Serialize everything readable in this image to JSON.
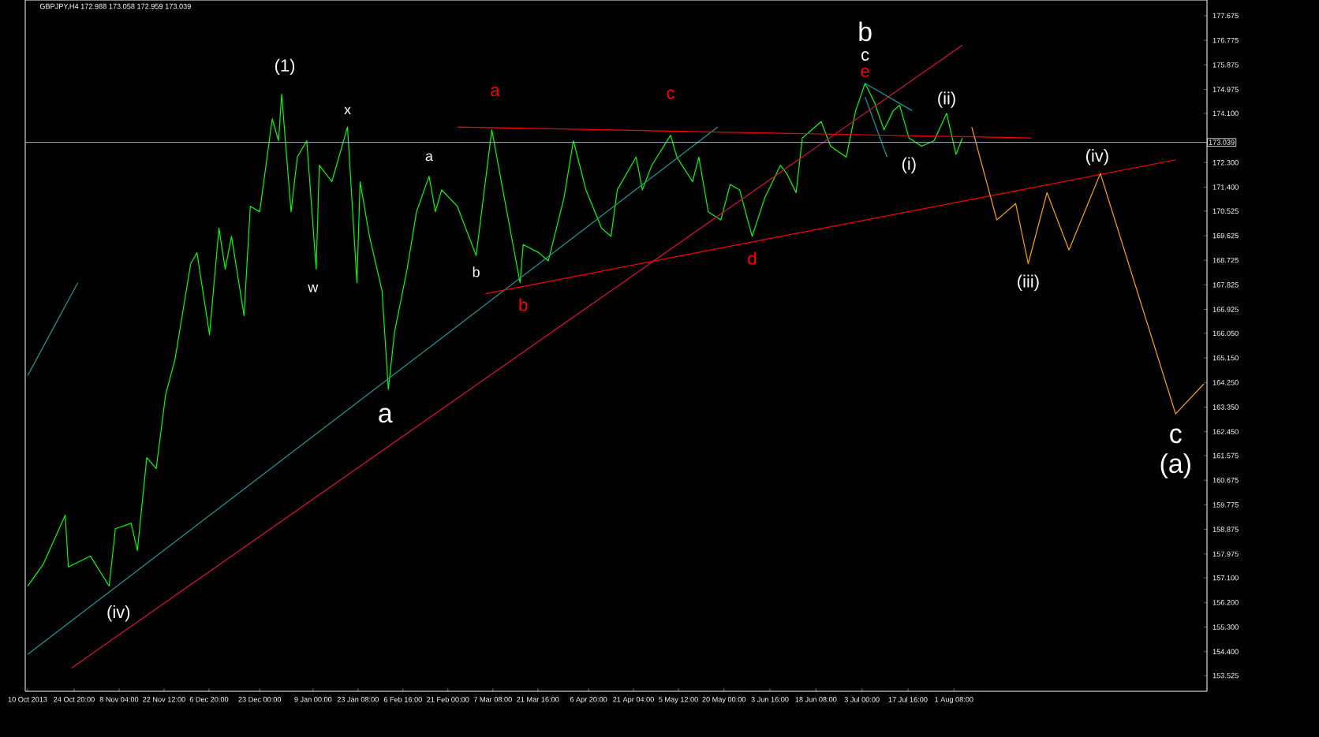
{
  "chart_data": {
    "type": "line",
    "title": "GBPJPY,H4  172.988 173.058 172.959 173.039",
    "series": [
      {
        "type": "line",
        "color": "#00ff00",
        "x": [
          "2013-10-10",
          "2013-10-15",
          "2013-10-22",
          "2013-10-23",
          "2013-10-30",
          "2013-11-05",
          "2013-11-07",
          "2013-11-12",
          "2013-11-14",
          "2013-11-17",
          "2013-11-20",
          "2013-11-23",
          "2013-11-26",
          "2013-12-01",
          "2013-12-03",
          "2013-12-07",
          "2013-12-10",
          "2013-12-12",
          "2013-12-14",
          "2013-12-18",
          "2013-12-20",
          "2013-12-23",
          "2013-12-27",
          "2013-12-29",
          "2013-12-30",
          "2014-01-02",
          "2014-01-04",
          "2014-01-07",
          "2014-01-10",
          "2014-01-11",
          "2014-01-15",
          "2014-01-20",
          "2014-01-23",
          "2014-01-24",
          "2014-01-27",
          "2014-01-31",
          "2014-02-02",
          "2014-02-04",
          "2014-02-08",
          "2014-02-11",
          "2014-02-15",
          "2014-02-17",
          "2014-02-19",
          "2014-02-24",
          "2014-03-02",
          "2014-03-07",
          "2014-03-11",
          "2014-03-16",
          "2014-03-17",
          "2014-03-22",
          "2014-03-25",
          "2014-03-30",
          "2014-04-02",
          "2014-04-06",
          "2014-04-11",
          "2014-04-14",
          "2014-04-16",
          "2014-04-22",
          "2014-04-24",
          "2014-04-27",
          "2014-05-03",
          "2014-05-05",
          "2014-05-10",
          "2014-05-12",
          "2014-05-15",
          "2014-05-19",
          "2014-05-22",
          "2014-05-25",
          "2014-05-29",
          "2014-06-02",
          "2014-06-07",
          "2014-06-09",
          "2014-06-12",
          "2014-06-14",
          "2014-06-20",
          "2014-06-23",
          "2014-06-28",
          "2014-07-01",
          "2014-07-04",
          "2014-07-07",
          "2014-07-10",
          "2014-07-13",
          "2014-07-15",
          "2014-07-18",
          "2014-07-22",
          "2014-07-26",
          "2014-07-30",
          "2014-08-02",
          "2014-08-04"
        ],
        "values": [
          156.8,
          157.6,
          159.4,
          157.5,
          157.9,
          156.8,
          158.9,
          159.1,
          158.1,
          161.5,
          161.1,
          163.8,
          165.1,
          168.6,
          169.0,
          166.0,
          169.9,
          168.4,
          169.6,
          166.7,
          170.7,
          170.5,
          173.9,
          173.1,
          174.8,
          170.5,
          172.5,
          173.1,
          168.4,
          172.2,
          171.6,
          173.6,
          167.9,
          171.6,
          169.6,
          167.6,
          164.0,
          166.1,
          168.4,
          170.5,
          171.8,
          170.5,
          171.3,
          170.7,
          168.9,
          173.5,
          171.0,
          167.9,
          169.3,
          169.0,
          168.7,
          171.0,
          173.1,
          171.3,
          169.9,
          169.6,
          171.3,
          172.5,
          171.3,
          172.2,
          173.3,
          172.5,
          171.6,
          172.5,
          170.5,
          170.2,
          171.5,
          171.3,
          169.6,
          171.0,
          172.2,
          171.9,
          171.2,
          173.2,
          173.8,
          172.9,
          172.5,
          174.2,
          175.2,
          174.5,
          173.5,
          174.2,
          174.4,
          173.2,
          172.9,
          173.1,
          174.1,
          172.6,
          173.2
        ]
      },
      {
        "type": "line",
        "color": "#1b9a9a",
        "x": [
          "2013-10-10",
          "2014-05-18"
        ],
        "values": [
          154.3,
          173.6
        ]
      },
      {
        "type": "line",
        "color": "#1b9a9a",
        "x": [
          "2013-10-10",
          "2013-10-26"
        ],
        "values": [
          164.5,
          167.9
        ]
      },
      {
        "type": "line",
        "color": "#1b9a9a",
        "x": [
          "2014-07-04",
          "2014-07-19"
        ],
        "values": [
          175.2,
          174.2
        ]
      },
      {
        "type": "line",
        "color": "#1b9a9a",
        "x": [
          "2014-07-04",
          "2014-07-11"
        ],
        "values": [
          174.7,
          172.5
        ]
      },
      {
        "type": "line",
        "color": "#e0103a",
        "x": [
          "2013-10-24",
          "2014-08-04"
        ],
        "values": [
          153.8,
          176.6
        ]
      },
      {
        "type": "line",
        "color": "#ff0000",
        "x": [
          "2014-02-24",
          "2014-08-26"
        ],
        "values": [
          173.6,
          173.2
        ]
      },
      {
        "type": "line",
        "color": "#ff0000",
        "x": [
          "2014-03-05",
          "2014-10-11"
        ],
        "values": [
          167.5,
          172.4
        ]
      },
      {
        "type": "line",
        "color": "#ffa500",
        "x": [
          "2014-08-07",
          "2014-08-15",
          "2014-08-21",
          "2014-08-25",
          "2014-08-31",
          "2014-09-07",
          "2014-09-17",
          "2014-10-11",
          "2014-10-20"
        ],
        "values": [
          173.6,
          170.2,
          170.8,
          168.6,
          171.2,
          169.1,
          171.9,
          163.1,
          164.2
        ]
      }
    ],
    "xlim": [
      "2013-10-09T06:00",
      "2014-10-21"
    ],
    "ylim": [
      152.95,
      178.25
    ],
    "xticks": [
      {
        "value": "2013-10-10T00:00",
        "label": "10 Oct 2013"
      },
      {
        "value": "2013-10-24T20:00",
        "label": "24 Oct 20:00"
      },
      {
        "value": "2013-11-08T04:00",
        "label": "8 Nov 04:00"
      },
      {
        "value": "2013-11-22T12:00",
        "label": "22 Nov 12:00"
      },
      {
        "value": "2013-12-06T20:00",
        "label": "6 Dec 20:00"
      },
      {
        "value": "2013-12-23T00:00",
        "label": "23 Dec 00:00"
      },
      {
        "value": "2014-01-09T00:00",
        "label": "9 Jan 00:00"
      },
      {
        "value": "2014-01-23T08:00",
        "label": "23 Jan 08:00"
      },
      {
        "value": "2014-02-06T16:00",
        "label": "6 Feb 16:00"
      },
      {
        "value": "2014-02-21T00:00",
        "label": "21 Feb 00:00"
      },
      {
        "value": "2014-03-07T08:00",
        "label": "7 Mar 08:00"
      },
      {
        "value": "2014-03-21T16:00",
        "label": "21 Mar 16:00"
      },
      {
        "value": "2014-04-06T20:00",
        "label": "6 Apr 20:00"
      },
      {
        "value": "2014-04-21T04:00",
        "label": "21 Apr 04:00"
      },
      {
        "value": "2014-05-05T12:00",
        "label": "5 May 12:00"
      },
      {
        "value": "2014-05-20T00:00",
        "label": "20 May 00:00"
      },
      {
        "value": "2014-06-03T16:00",
        "label": "3 Jun 16:00"
      },
      {
        "value": "2014-06-18T08:00",
        "label": "18 Jun 08:00"
      },
      {
        "value": "2014-07-03T00:00",
        "label": "3 Jul 00:00"
      },
      {
        "value": "2014-07-17T16:00",
        "label": "17 Jul 16:00"
      },
      {
        "value": "2014-08-01T08:00",
        "label": "1 Aug 08:00"
      }
    ],
    "yticks": [
      177.675,
      176.775,
      175.875,
      174.975,
      {
        "value": 174.1,
        "label": "174.100"
      },
      {
        "value": 172.3,
        "label": "172.300"
      },
      {
        "value": 171.4,
        "label": "171.400"
      },
      170.525,
      169.625,
      168.725,
      167.825,
      166.925,
      {
        "value": 166.05,
        "label": "166.050"
      },
      {
        "value": 165.15,
        "label": "165.150"
      },
      {
        "value": 164.25,
        "label": "164.250"
      },
      {
        "value": 163.35,
        "label": "163.350"
      },
      {
        "value": 162.45,
        "label": "162.450"
      },
      161.575,
      160.675,
      159.775,
      158.875,
      157.975,
      {
        "value": 157.1,
        "label": "157.100"
      },
      {
        "value": 156.2,
        "label": "156.200"
      },
      {
        "value": 155.3,
        "label": "155.300"
      },
      {
        "value": 154.4,
        "label": "154.400"
      },
      153.525
    ],
    "ref_lines": [
      {
        "axis": "y",
        "value": 173.039,
        "label": "173.039",
        "color": "#a0b4c0"
      }
    ],
    "annotations": [
      "(1)",
      "x",
      "w",
      "a",
      "a",
      "b",
      "a",
      "b",
      "c",
      "d",
      "e",
      "c",
      "b",
      "(i)",
      "(ii)",
      "(iii)",
      "(iv)",
      "c",
      "(a)",
      "(iv)"
    ],
    "marker": "none",
    "line_style": "solid"
  }
}
